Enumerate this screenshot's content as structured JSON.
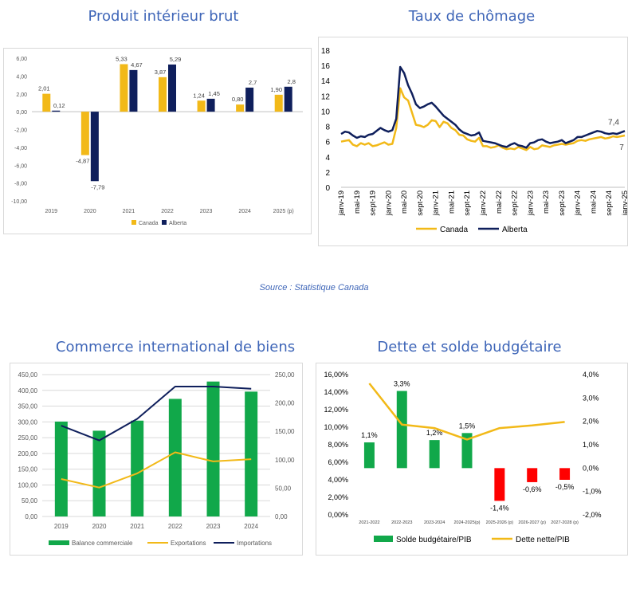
{
  "colors": {
    "gold": "#f2b918",
    "navy": "#0f1f5c",
    "green": "#11a84a",
    "red": "#ff0000",
    "title": "#3f66b8"
  },
  "source_note": "Source : Statistique Canada",
  "chart_data": [
    {
      "id": "pib",
      "type": "bar",
      "title": "Produit intérieur brut",
      "categories": [
        "2019",
        "2020",
        "2021",
        "2022",
        "2023",
        "2024",
        "2025 (p)"
      ],
      "series": [
        {
          "name": "Canada",
          "values": [
            2.01,
            -4.87,
            5.33,
            3.87,
            1.24,
            0.8,
            1.9
          ],
          "labels": [
            "2,01",
            "-4,87",
            "5,33",
            "3,87",
            "1,24",
            "0,80",
            "1,90"
          ]
        },
        {
          "name": "Alberta",
          "values": [
            0.12,
            -7.79,
            4.67,
            5.29,
            1.45,
            2.7,
            2.8
          ],
          "labels": [
            "0,12",
            "-7,79",
            "4,67",
            "5,29",
            "1,45",
            "2,7",
            "2,8"
          ]
        }
      ],
      "ylim": [
        -10,
        6
      ],
      "yticks": [
        "-10,00",
        "-8,00",
        "-6,00",
        "-4,00",
        "-2,00",
        "0,00",
        "2,00",
        "4,00",
        "6,00"
      ],
      "legend": "bottom"
    },
    {
      "id": "chomage",
      "type": "line",
      "title": "Taux de chômage",
      "xticks": [
        "janv-19",
        "mai-19",
        "sept-19",
        "janv-20",
        "mai-20",
        "sept-20",
        "janv-21",
        "mai-21",
        "sept-21",
        "janv-22",
        "mai-22",
        "sept-22",
        "janv-23",
        "mai-23",
        "sept-23",
        "janv-24",
        "mai-24",
        "sept-24",
        "janv-25"
      ],
      "ylim": [
        0,
        18
      ],
      "yticks": [
        "0",
        "2",
        "4",
        "6",
        "8",
        "10",
        "12",
        "14",
        "16",
        "18"
      ],
      "series": [
        {
          "name": "Canada",
          "values": [
            6.0,
            6.1,
            6.2,
            5.6,
            5.4,
            5.8,
            5.6,
            5.8,
            5.4,
            5.5,
            5.7,
            5.9,
            5.6,
            5.7,
            7.8,
            13.0,
            11.8,
            11.4,
            9.8,
            8.2,
            8.1,
            7.9,
            8.2,
            8.8,
            8.7,
            7.9,
            8.6,
            8.4,
            7.8,
            7.5,
            6.9,
            6.8,
            6.3,
            6.1,
            6.0,
            6.5,
            5.4,
            5.4,
            5.2,
            5.3,
            5.5,
            5.2,
            5.0,
            5.1,
            5.0,
            5.3,
            5.1,
            4.9,
            5.3,
            5.0,
            5.1,
            5.5,
            5.4,
            5.3,
            5.5,
            5.6,
            5.7,
            5.6,
            5.7,
            5.8,
            6.1,
            6.2,
            6.1,
            6.3,
            6.4,
            6.5,
            6.6,
            6.4,
            6.5,
            6.7,
            6.6,
            6.7,
            6.8
          ],
          "end_label": "7"
        },
        {
          "name": "Alberta",
          "values": [
            7.0,
            7.3,
            7.2,
            6.8,
            6.5,
            6.7,
            6.6,
            6.9,
            7.0,
            7.4,
            7.8,
            7.5,
            7.3,
            7.5,
            9.0,
            15.8,
            15.0,
            13.4,
            12.3,
            10.9,
            10.4,
            10.6,
            10.9,
            11.1,
            10.6,
            10.0,
            9.4,
            9.0,
            8.6,
            8.2,
            7.6,
            7.2,
            7.0,
            6.8,
            6.9,
            7.2,
            6.1,
            6.0,
            5.9,
            5.8,
            5.6,
            5.4,
            5.3,
            5.6,
            5.8,
            5.5,
            5.4,
            5.2,
            5.8,
            5.9,
            6.2,
            6.3,
            6.0,
            5.8,
            5.9,
            6.0,
            6.2,
            5.8,
            6.0,
            6.2,
            6.6,
            6.6,
            6.8,
            7.0,
            7.2,
            7.4,
            7.3,
            7.1,
            7.0,
            7.1,
            7.0,
            7.2,
            7.4
          ],
          "end_label": "7,4"
        }
      ],
      "legend": "bottom"
    },
    {
      "id": "commerce",
      "type": "bar",
      "title": "Commerce international de biens",
      "categories": [
        "2019",
        "2020",
        "2021",
        "2022",
        "2023",
        "2024"
      ],
      "ylim_left": [
        0,
        450
      ],
      "yticks_left": [
        "0,00",
        "50,00",
        "100,00",
        "150,00",
        "200,00",
        "250,00",
        "300,00",
        "350,00",
        "400,00",
        "450,00"
      ],
      "ylim_right": [
        0,
        250
      ],
      "yticks_right": [
        "0,00",
        "50,00",
        "100,00",
        "150,00",
        "200,00",
        "250,00"
      ],
      "series": [
        {
          "name": "Balance commerciale",
          "kind": "bar",
          "axis": "left",
          "values": [
            301,
            272,
            304,
            373,
            428,
            396
          ]
        },
        {
          "name": "Exportations",
          "kind": "line",
          "axis": "right",
          "values": [
            66,
            51,
            76,
            113,
            97,
            101
          ]
        },
        {
          "name": "Importations",
          "kind": "line",
          "axis": "right",
          "values": [
            160,
            134,
            172,
            229,
            229,
            225
          ]
        }
      ],
      "legend": "bottom"
    },
    {
      "id": "dette",
      "type": "bar",
      "title": "Dette et solde budgétaire",
      "categories": [
        "2021-2022",
        "2022-2023",
        "2023-2024",
        "2024-2025(p)",
        "2025-2026 (p)",
        "2026-2027 (p)",
        "2027-2028 (p)"
      ],
      "ylim_left": [
        0,
        16
      ],
      "yticks_left": [
        "0,00%",
        "2,00%",
        "4,00%",
        "6,00%",
        "8,00%",
        "10,00%",
        "12,00%",
        "14,00%",
        "16,00%"
      ],
      "ylim_right": [
        -2,
        4
      ],
      "yticks_right": [
        "-2,0%",
        "-1,0%",
        "0,0%",
        "1,0%",
        "2,0%",
        "3,0%",
        "4,0%"
      ],
      "series": [
        {
          "name": "Solde budgétaire/PIB",
          "kind": "bar",
          "axis": "right",
          "values": [
            1.1,
            3.3,
            1.2,
            1.5,
            -1.4,
            -0.6,
            -0.5
          ],
          "labels": [
            "1,1%",
            "3,3%",
            "1,2%",
            "1,5%",
            "-1,4%",
            "-0,6%",
            "-0,5%"
          ]
        },
        {
          "name": "Dette nette/PIB",
          "kind": "line",
          "axis": "left",
          "values": [
            15.0,
            10.3,
            9.9,
            8.6,
            9.9,
            10.2,
            10.6
          ]
        }
      ],
      "legend": "bottom"
    }
  ]
}
